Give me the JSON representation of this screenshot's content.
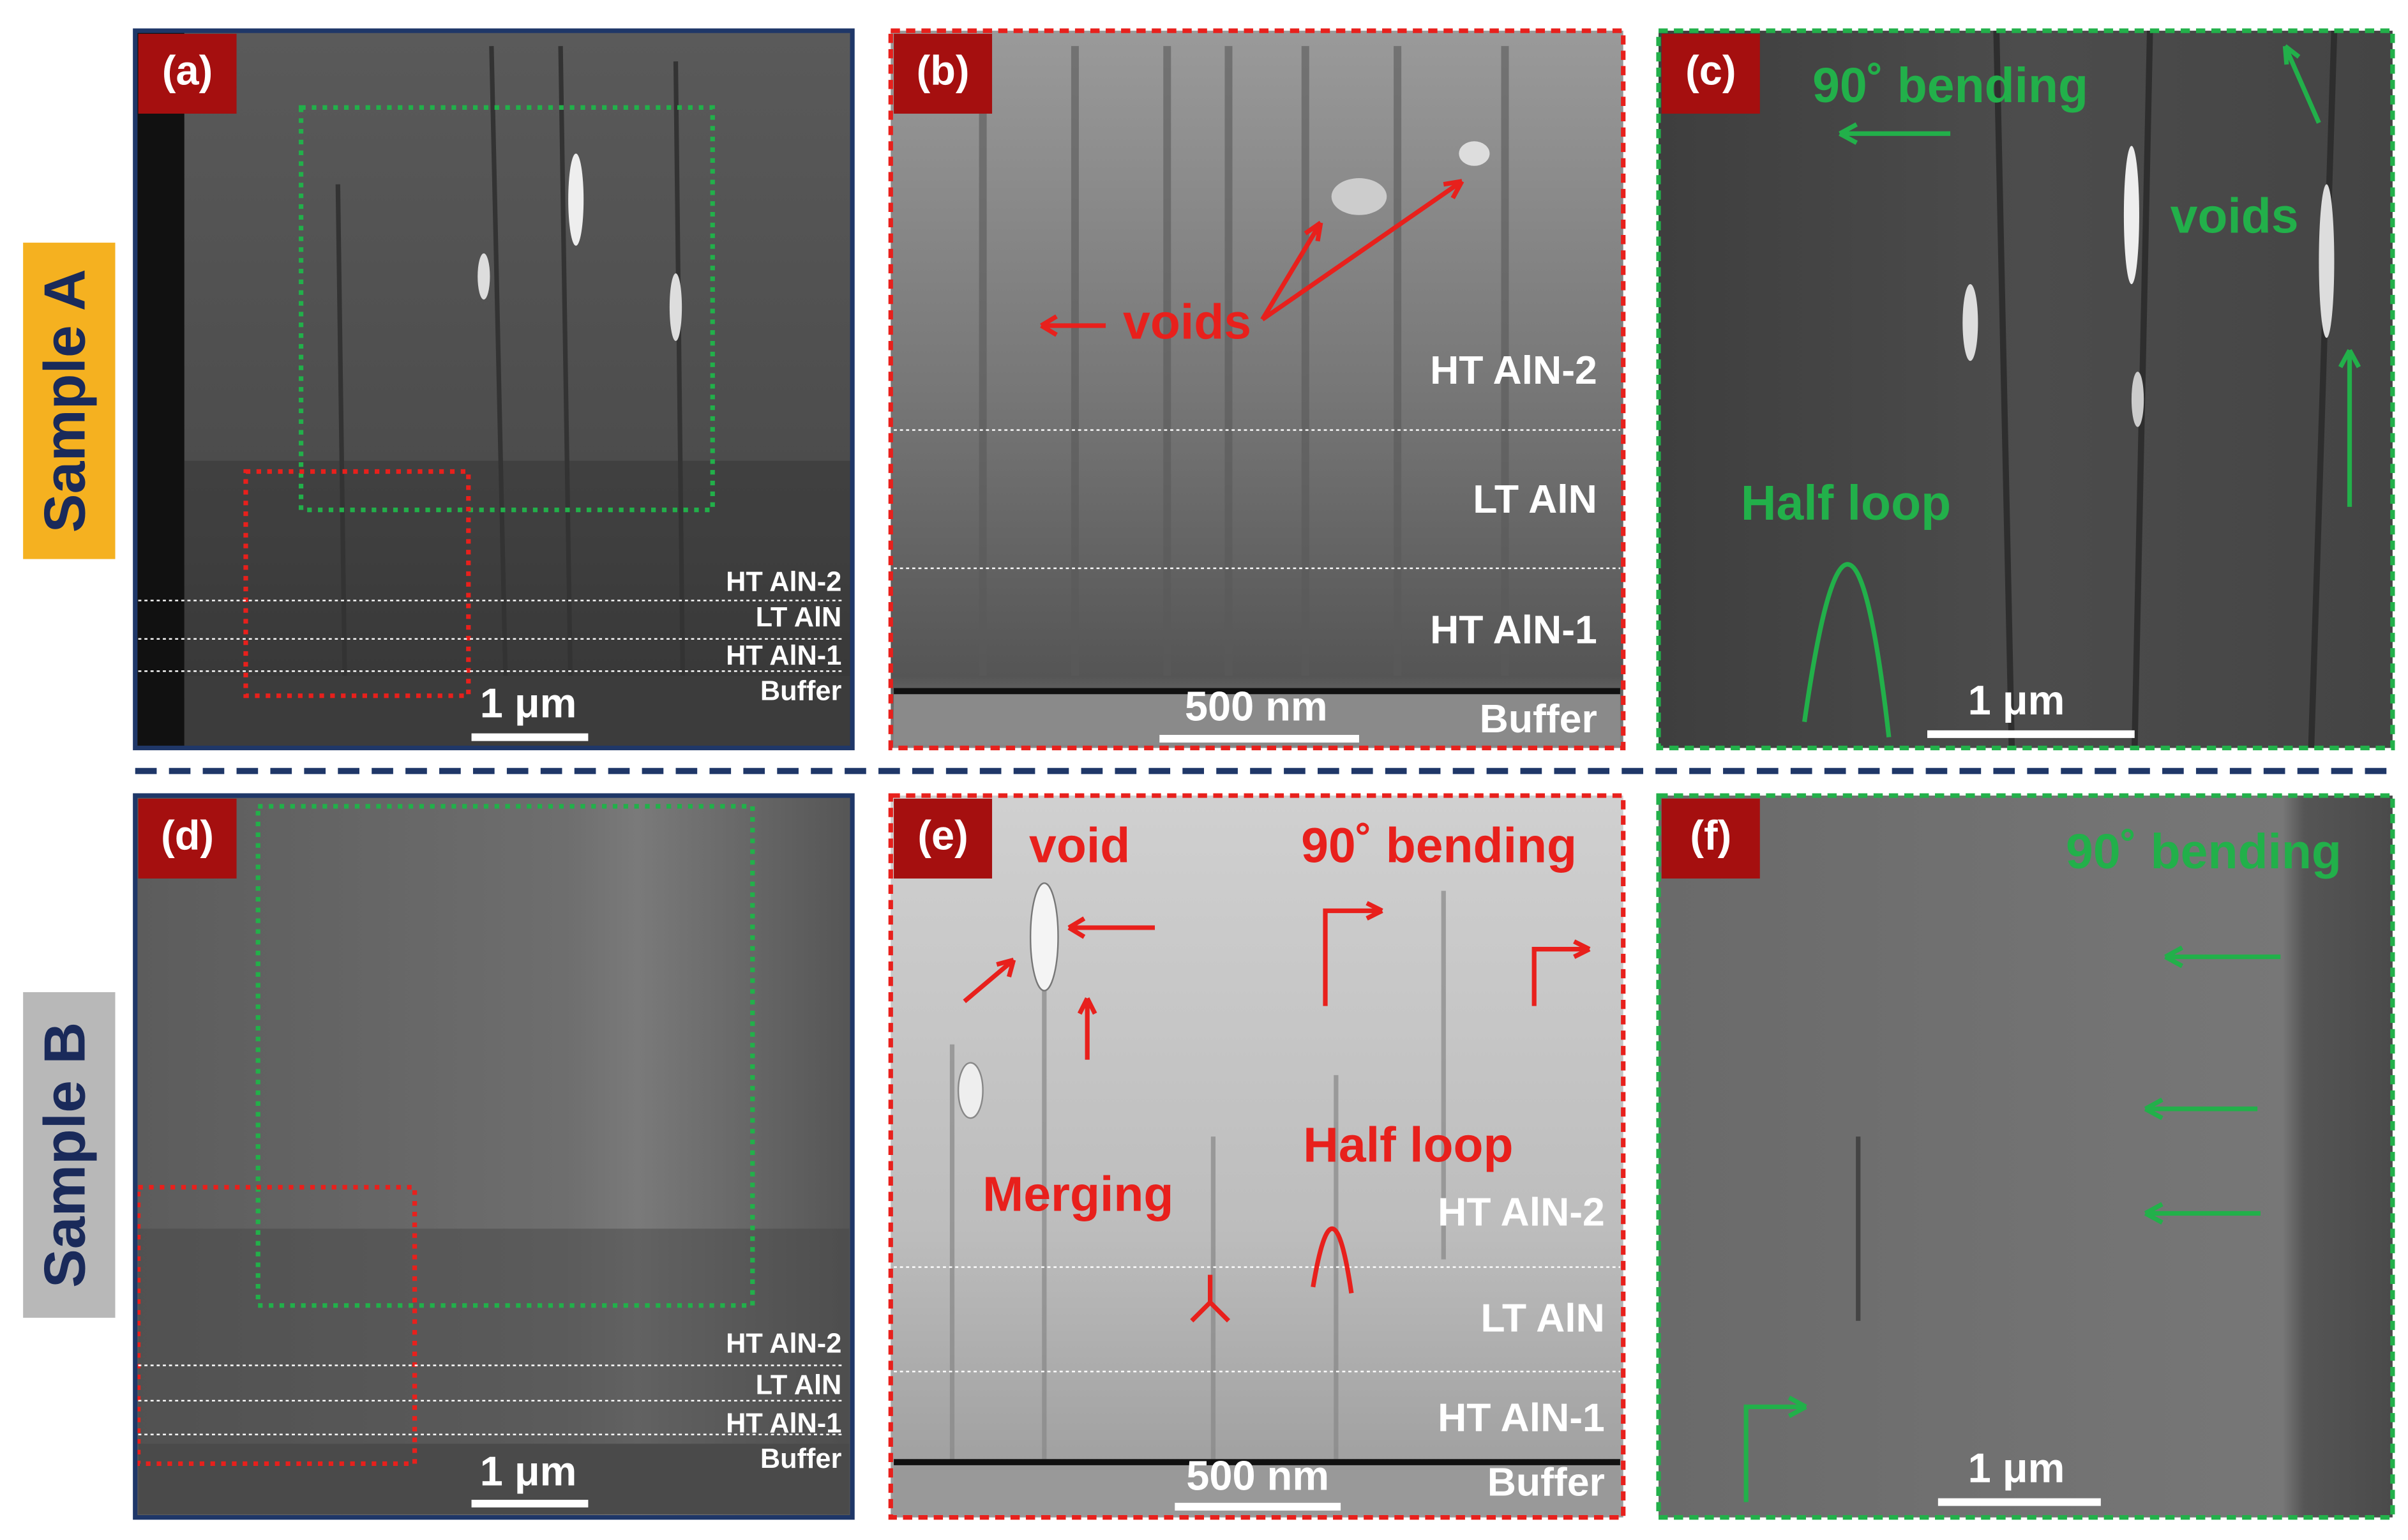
{
  "side_labels": [
    "Sample A",
    "Sample B"
  ],
  "panels": [
    {
      "label": "(a)",
      "layers": [
        "HT AlN-2",
        "LT AlN",
        "HT AlN-1",
        "Buffer"
      ],
      "scale_bar": "1 μm"
    },
    {
      "label": "(b)",
      "annotations": [
        "voids"
      ],
      "layers": [
        "HT AlN-2",
        "LT AlN",
        "HT AlN-1",
        "Buffer"
      ],
      "scale_bar": "500 nm"
    },
    {
      "label": "(c)",
      "annotations": [
        "90˚ bending",
        "voids",
        "Half loop"
      ],
      "scale_bar": "1 μm"
    },
    {
      "label": "(d)",
      "layers": [
        "HT AlN-2",
        "LT AlN",
        "HT AlN-1",
        "Buffer"
      ],
      "scale_bar": "1 μm"
    },
    {
      "label": "(e)",
      "annotations": [
        "void",
        "90˚ bending",
        "Half loop",
        "Merging"
      ],
      "layers": [
        "HT AlN-2",
        "LT AlN",
        "HT AlN-1",
        "Buffer"
      ],
      "scale_bar": "500 nm"
    },
    {
      "label": "(f)",
      "annotations": [
        "90˚ bending"
      ],
      "scale_bar": "1 μm"
    }
  ]
}
